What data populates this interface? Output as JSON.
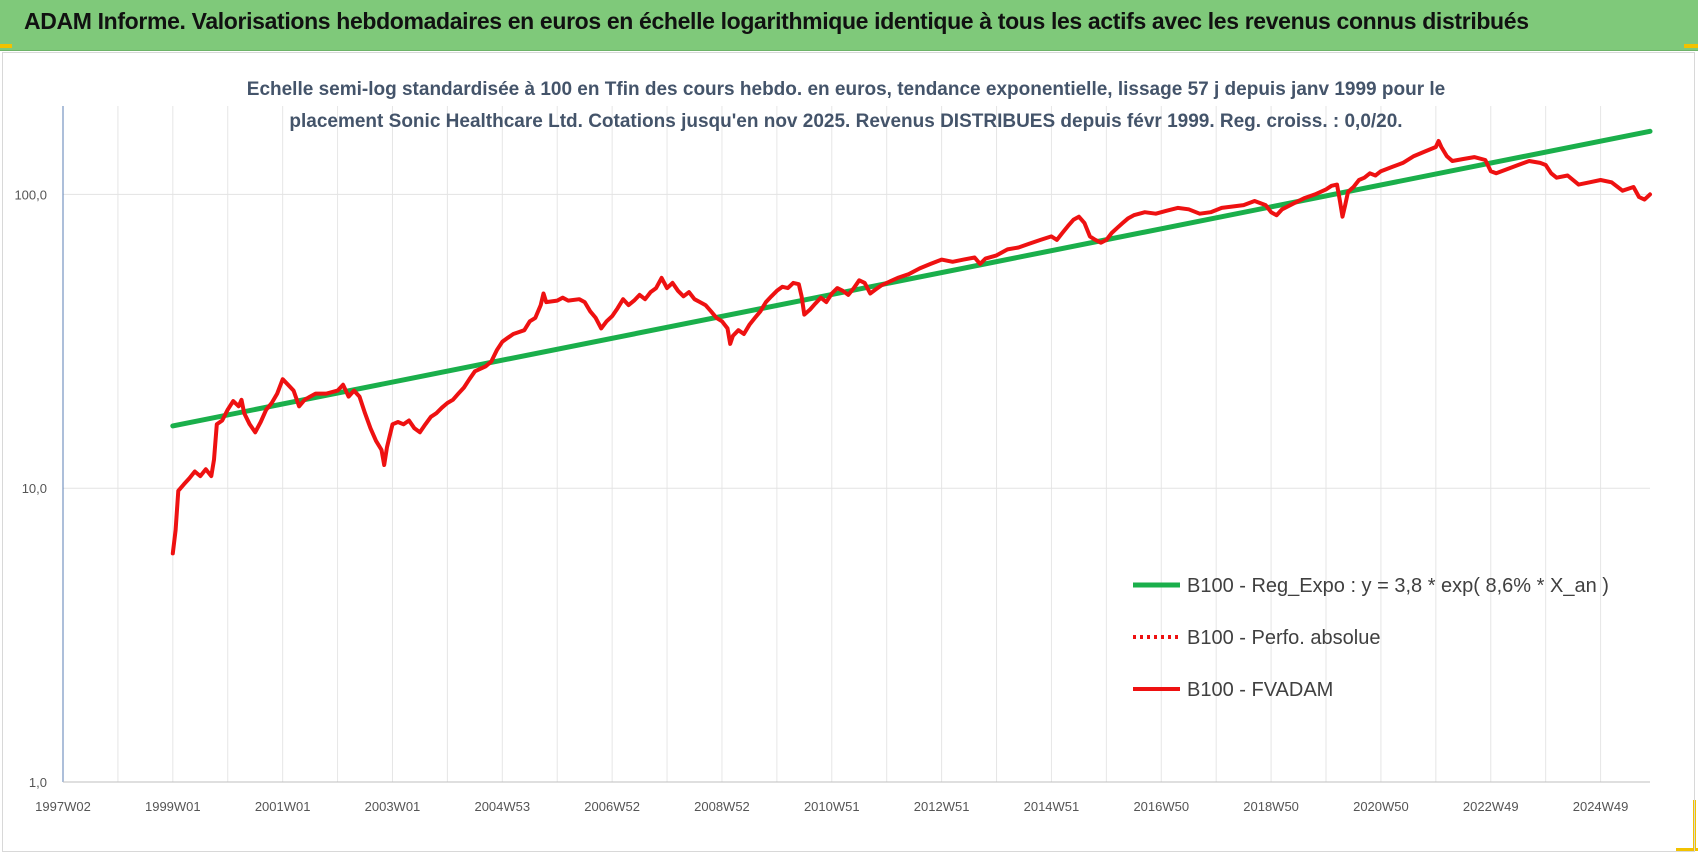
{
  "header": {
    "title": "ADAM Informe. Valorisations hebdomadaires en euros en échelle logarithmique identique à tous les actifs avec les revenus connus distribués"
  },
  "colors": {
    "banner": "#7fc97a",
    "trend": "#1aaf4b",
    "series": "#ee1111",
    "accent": "#f2c200"
  },
  "chart_data": {
    "type": "line",
    "title_lines": [
      "Echelle semi-log standardisée à 100 en Tfin des cours hebdo. en euros, tendance exponentielle, lissage 57 j depuis janv 1999 pour le",
      "placement Sonic Healthcare Ltd. Cotations jusqu'en nov 2025.  Revenus DISTRIBUES  depuis févr 1999.  Reg. croiss. : 0,0/20."
    ],
    "y_scale": "log",
    "ylim": [
      1,
      200
    ],
    "xlim": [
      1997.0,
      2025.9
    ],
    "y_ticks": [
      {
        "value": 100,
        "label": "100,0"
      },
      {
        "value": 10,
        "label": "10,0"
      },
      {
        "value": 1,
        "label": "1,0"
      }
    ],
    "x_ticks": [
      {
        "value": 1997.0,
        "label": "1997W02"
      },
      {
        "value": 1999.0,
        "label": "1999W01"
      },
      {
        "value": 2001.0,
        "label": "2001W01"
      },
      {
        "value": 2003.0,
        "label": "2003W01"
      },
      {
        "value": 2005.0,
        "label": "2004W53"
      },
      {
        "value": 2007.0,
        "label": "2006W52"
      },
      {
        "value": 2009.0,
        "label": "2008W52"
      },
      {
        "value": 2011.0,
        "label": "2010W51"
      },
      {
        "value": 2013.0,
        "label": "2012W51"
      },
      {
        "value": 2015.0,
        "label": "2014W51"
      },
      {
        "value": 2017.0,
        "label": "2016W50"
      },
      {
        "value": 2019.0,
        "label": "2018W50"
      },
      {
        "value": 2021.0,
        "label": "2020W50"
      },
      {
        "value": 2023.0,
        "label": "2022W49"
      },
      {
        "value": 2025.0,
        "label": "2024W49"
      }
    ],
    "grid": true,
    "legend_position": "center-right",
    "series": [
      {
        "name": "B100 - Reg_Expo : y = 3,8 * exp( 8,6% *  X_an )",
        "style": "solid",
        "color": "#1aaf4b",
        "points": [
          [
            1999.0,
            16.3
          ],
          [
            2025.9,
            164
          ]
        ]
      },
      {
        "name": "B100 - Perfo. absolue",
        "style": "dotted",
        "color": "#ee1111",
        "points": []
      },
      {
        "name": "B100 - FVADAM",
        "style": "solid",
        "color": "#ee1111",
        "points": [
          [
            1999.0,
            6.0
          ],
          [
            1999.05,
            7.2
          ],
          [
            1999.1,
            9.8
          ],
          [
            1999.2,
            10.3
          ],
          [
            1999.3,
            10.8
          ],
          [
            1999.4,
            11.4
          ],
          [
            1999.5,
            11.0
          ],
          [
            1999.6,
            11.6
          ],
          [
            1999.7,
            11.0
          ],
          [
            1999.75,
            12.5
          ],
          [
            1999.8,
            16.5
          ],
          [
            1999.9,
            17.0
          ],
          [
            2000.0,
            18.5
          ],
          [
            2000.1,
            19.8
          ],
          [
            2000.2,
            19.0
          ],
          [
            2000.25,
            20.0
          ],
          [
            2000.3,
            18.0
          ],
          [
            2000.4,
            16.5
          ],
          [
            2000.5,
            15.5
          ],
          [
            2000.6,
            16.8
          ],
          [
            2000.7,
            18.5
          ],
          [
            2000.8,
            19.5
          ],
          [
            2000.9,
            21.0
          ],
          [
            2001.0,
            23.5
          ],
          [
            2001.1,
            22.5
          ],
          [
            2001.2,
            21.5
          ],
          [
            2001.3,
            19.0
          ],
          [
            2001.4,
            20.0
          ],
          [
            2001.5,
            20.5
          ],
          [
            2001.6,
            21.0
          ],
          [
            2001.8,
            21.0
          ],
          [
            2002.0,
            21.5
          ],
          [
            2002.1,
            22.5
          ],
          [
            2002.2,
            20.5
          ],
          [
            2002.3,
            21.5
          ],
          [
            2002.4,
            20.5
          ],
          [
            2002.5,
            18.0
          ],
          [
            2002.6,
            16.0
          ],
          [
            2002.7,
            14.5
          ],
          [
            2002.8,
            13.5
          ],
          [
            2002.85,
            12.0
          ],
          [
            2002.9,
            13.8
          ],
          [
            2003.0,
            16.5
          ],
          [
            2003.1,
            16.8
          ],
          [
            2003.2,
            16.5
          ],
          [
            2003.3,
            17.0
          ],
          [
            2003.4,
            16.0
          ],
          [
            2003.5,
            15.5
          ],
          [
            2003.6,
            16.5
          ],
          [
            2003.7,
            17.5
          ],
          [
            2003.8,
            18.0
          ],
          [
            2003.9,
            18.8
          ],
          [
            2004.0,
            19.5
          ],
          [
            2004.1,
            20.0
          ],
          [
            2004.2,
            21.0
          ],
          [
            2004.3,
            22.0
          ],
          [
            2004.4,
            23.5
          ],
          [
            2004.5,
            25.0
          ],
          [
            2004.6,
            25.5
          ],
          [
            2004.7,
            26.0
          ],
          [
            2004.8,
            27.0
          ],
          [
            2004.9,
            29.5
          ],
          [
            2005.0,
            31.5
          ],
          [
            2005.1,
            32.5
          ],
          [
            2005.2,
            33.5
          ],
          [
            2005.3,
            34.0
          ],
          [
            2005.4,
            34.5
          ],
          [
            2005.5,
            37.0
          ],
          [
            2005.6,
            38.0
          ],
          [
            2005.7,
            42.0
          ],
          [
            2005.75,
            46.0
          ],
          [
            2005.8,
            43.0
          ],
          [
            2006.0,
            43.5
          ],
          [
            2006.1,
            44.5
          ],
          [
            2006.2,
            43.5
          ],
          [
            2006.4,
            44.0
          ],
          [
            2006.5,
            43.0
          ],
          [
            2006.6,
            40.0
          ],
          [
            2006.7,
            38.0
          ],
          [
            2006.8,
            35.0
          ],
          [
            2006.9,
            37.0
          ],
          [
            2007.0,
            38.5
          ],
          [
            2007.1,
            41.0
          ],
          [
            2007.2,
            44.0
          ],
          [
            2007.3,
            42.0
          ],
          [
            2007.4,
            43.5
          ],
          [
            2007.5,
            45.5
          ],
          [
            2007.6,
            44.0
          ],
          [
            2007.7,
            46.5
          ],
          [
            2007.8,
            48.0
          ],
          [
            2007.9,
            52.0
          ],
          [
            2008.0,
            48.0
          ],
          [
            2008.1,
            50.0
          ],
          [
            2008.2,
            47.0
          ],
          [
            2008.3,
            45.0
          ],
          [
            2008.4,
            46.5
          ],
          [
            2008.5,
            44.0
          ],
          [
            2008.6,
            43.0
          ],
          [
            2008.7,
            42.0
          ],
          [
            2008.8,
            40.0
          ],
          [
            2008.9,
            38.0
          ],
          [
            2009.0,
            37.0
          ],
          [
            2009.1,
            35.0
          ],
          [
            2009.15,
            31.0
          ],
          [
            2009.2,
            33.0
          ],
          [
            2009.3,
            34.5
          ],
          [
            2009.4,
            33.5
          ],
          [
            2009.5,
            36.0
          ],
          [
            2009.6,
            38.0
          ],
          [
            2009.7,
            40.0
          ],
          [
            2009.8,
            43.0
          ],
          [
            2009.9,
            45.0
          ],
          [
            2010.0,
            47.0
          ],
          [
            2010.1,
            48.5
          ],
          [
            2010.2,
            48.0
          ],
          [
            2010.3,
            50.0
          ],
          [
            2010.4,
            49.5
          ],
          [
            2010.45,
            45.0
          ],
          [
            2010.5,
            39.0
          ],
          [
            2010.6,
            40.5
          ],
          [
            2010.7,
            42.5
          ],
          [
            2010.8,
            44.5
          ],
          [
            2010.9,
            43.0
          ],
          [
            2011.0,
            46.0
          ],
          [
            2011.1,
            48.0
          ],
          [
            2011.2,
            47.0
          ],
          [
            2011.3,
            45.5
          ],
          [
            2011.4,
            48.0
          ],
          [
            2011.5,
            51.0
          ],
          [
            2011.6,
            50.0
          ],
          [
            2011.7,
            46.0
          ],
          [
            2011.8,
            47.5
          ],
          [
            2011.9,
            49.0
          ],
          [
            2012.0,
            50.0
          ],
          [
            2012.2,
            52.0
          ],
          [
            2012.4,
            53.5
          ],
          [
            2012.6,
            56.0
          ],
          [
            2012.8,
            58.0
          ],
          [
            2013.0,
            60.0
          ],
          [
            2013.2,
            59.0
          ],
          [
            2013.4,
            60.0
          ],
          [
            2013.6,
            61.0
          ],
          [
            2013.7,
            58.0
          ],
          [
            2013.8,
            60.5
          ],
          [
            2014.0,
            62.0
          ],
          [
            2014.2,
            65.0
          ],
          [
            2014.4,
            66.0
          ],
          [
            2014.6,
            68.0
          ],
          [
            2014.8,
            70.0
          ],
          [
            2015.0,
            72.0
          ],
          [
            2015.1,
            70.0
          ],
          [
            2015.2,
            74.0
          ],
          [
            2015.3,
            78.0
          ],
          [
            2015.4,
            82.0
          ],
          [
            2015.5,
            84.0
          ],
          [
            2015.6,
            80.0
          ],
          [
            2015.65,
            76.0
          ],
          [
            2015.7,
            72.0
          ],
          [
            2015.8,
            70.0
          ],
          [
            2015.9,
            68.5
          ],
          [
            2016.0,
            70.0
          ],
          [
            2016.1,
            74.0
          ],
          [
            2016.2,
            77.0
          ],
          [
            2016.3,
            80.0
          ],
          [
            2016.4,
            83.0
          ],
          [
            2016.5,
            85.0
          ],
          [
            2016.7,
            87.0
          ],
          [
            2016.9,
            86.0
          ],
          [
            2017.1,
            88.0
          ],
          [
            2017.3,
            90.0
          ],
          [
            2017.5,
            89.0
          ],
          [
            2017.7,
            86.0
          ],
          [
            2017.9,
            87.0
          ],
          [
            2018.1,
            90.0
          ],
          [
            2018.3,
            91.0
          ],
          [
            2018.5,
            92.0
          ],
          [
            2018.7,
            95.0
          ],
          [
            2018.9,
            92.0
          ],
          [
            2019.0,
            87.0
          ],
          [
            2019.1,
            85.0
          ],
          [
            2019.2,
            89.0
          ],
          [
            2019.4,
            93.0
          ],
          [
            2019.6,
            97.0
          ],
          [
            2019.8,
            100.0
          ],
          [
            2020.0,
            104.0
          ],
          [
            2020.1,
            107.0
          ],
          [
            2020.2,
            108.0
          ],
          [
            2020.25,
            96.0
          ],
          [
            2020.3,
            84.0
          ],
          [
            2020.35,
            92.0
          ],
          [
            2020.4,
            102.0
          ],
          [
            2020.5,
            106.0
          ],
          [
            2020.6,
            112.0
          ],
          [
            2020.7,
            114.0
          ],
          [
            2020.8,
            118.0
          ],
          [
            2020.9,
            116.0
          ],
          [
            2021.0,
            120.0
          ],
          [
            2021.2,
            124.0
          ],
          [
            2021.4,
            128.0
          ],
          [
            2021.6,
            135.0
          ],
          [
            2021.8,
            140.0
          ],
          [
            2022.0,
            145.0
          ],
          [
            2022.05,
            152.0
          ],
          [
            2022.1,
            145.0
          ],
          [
            2022.2,
            135.0
          ],
          [
            2022.3,
            130.0
          ],
          [
            2022.5,
            132.0
          ],
          [
            2022.7,
            134.0
          ],
          [
            2022.9,
            131.0
          ],
          [
            2023.0,
            120.0
          ],
          [
            2023.1,
            118.0
          ],
          [
            2023.3,
            122.0
          ],
          [
            2023.5,
            126.0
          ],
          [
            2023.7,
            130.0
          ],
          [
            2023.9,
            128.0
          ],
          [
            2024.0,
            126.0
          ],
          [
            2024.1,
            118.0
          ],
          [
            2024.2,
            114.0
          ],
          [
            2024.4,
            116.0
          ],
          [
            2024.6,
            108.0
          ],
          [
            2024.8,
            110.0
          ],
          [
            2025.0,
            112.0
          ],
          [
            2025.2,
            110.0
          ],
          [
            2025.4,
            103.0
          ],
          [
            2025.6,
            106.0
          ],
          [
            2025.7,
            98.0
          ],
          [
            2025.8,
            96.0
          ],
          [
            2025.9,
            100.0
          ]
        ]
      }
    ]
  }
}
